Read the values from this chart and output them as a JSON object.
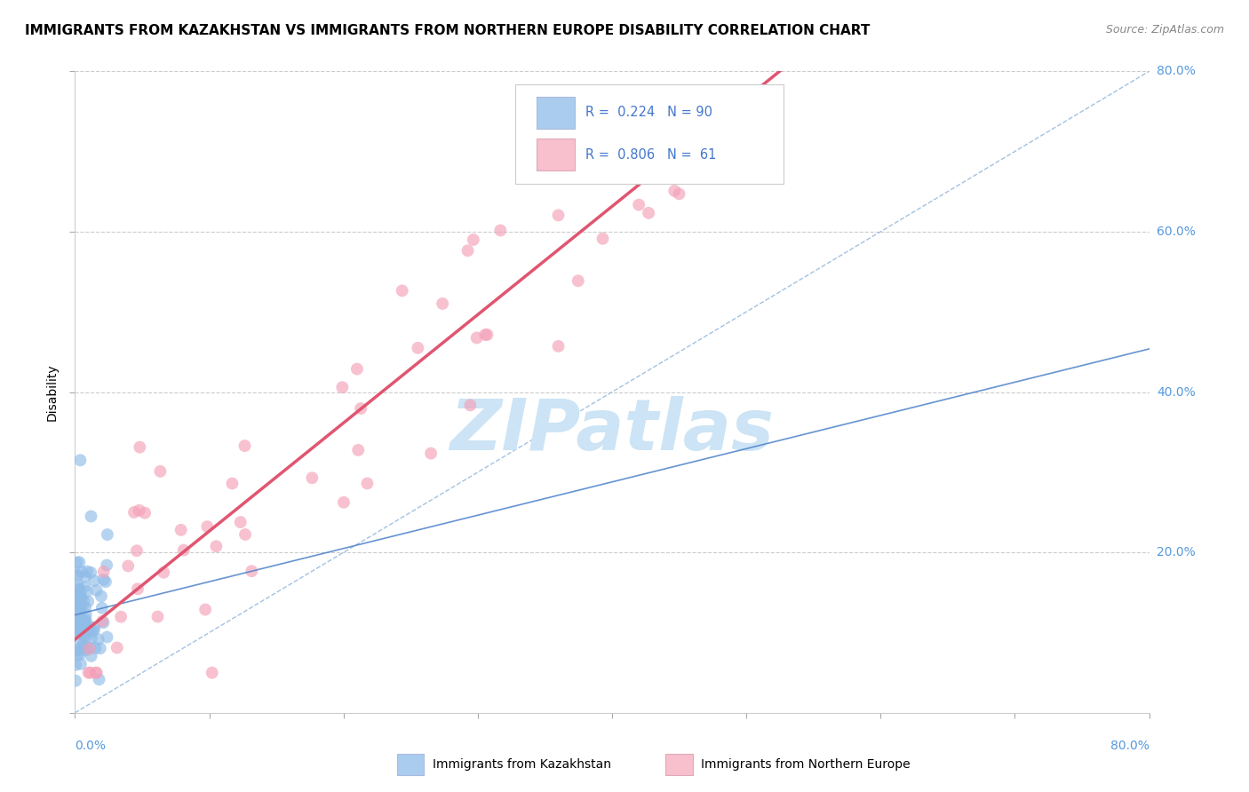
{
  "title": "IMMIGRANTS FROM KAZAKHSTAN VS IMMIGRANTS FROM NORTHERN EUROPE DISABILITY CORRELATION CHART",
  "source": "Source: ZipAtlas.com",
  "ylabel": "Disability",
  "xlim": [
    0.0,
    0.8
  ],
  "ylim": [
    0.0,
    0.8
  ],
  "series1_label": "Immigrants from Kazakhstan",
  "series2_label": "Immigrants from Northern Europe",
  "series1_color": "#90bce8",
  "series2_color": "#f4a0b8",
  "series1_line_color": "#5588cc",
  "series2_line_color": "#e05570",
  "series1_R": 0.224,
  "series1_N": 90,
  "series2_R": 0.806,
  "series2_N": 61,
  "text_blue": "#4477cc",
  "watermark_color": "#cce4f5",
  "background_color": "#ffffff",
  "grid_color": "#cccccc",
  "title_fontsize": 11,
  "source_fontsize": 9,
  "axis_label_color": "#5599dd",
  "legend_sq1_color": "#aaccee",
  "legend_sq2_color": "#f8c0cc"
}
